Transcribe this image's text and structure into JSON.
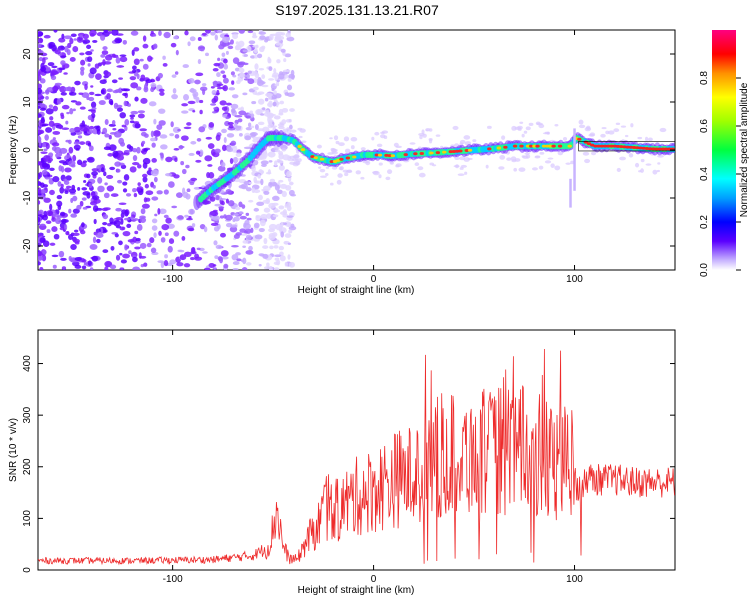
{
  "title": "S197.2025.131.13.21.R07",
  "colors": {
    "snr_line": "#ee2b2b",
    "ridge_low": "#6a00ff",
    "ridge_mid": "#00c8ff",
    "ridge_high": "#ff1010"
  },
  "chart_data": [
    {
      "type": "heatmap",
      "title": "S197.2025.131.13.21.R07",
      "xlabel": "Height of straight line (km)",
      "ylabel": "Frequency (Hz)",
      "xlim": [
        -167,
        150
      ],
      "ylim": [
        -25,
        25
      ],
      "x_ticks": [
        -100,
        0,
        100
      ],
      "y_ticks": [
        -20,
        -10,
        0,
        10,
        20
      ],
      "ridge": {
        "x": [
          -88,
          -80,
          -70,
          -62,
          -56,
          -52,
          -45,
          -40,
          -35,
          -30,
          -25,
          -20,
          -15,
          -10,
          -5,
          0,
          10,
          20,
          30,
          40,
          50,
          60,
          70,
          80,
          90,
          98,
          101,
          110,
          120,
          130,
          140,
          150
        ],
        "y": [
          -11,
          -8,
          -5,
          -2,
          1,
          2.5,
          2.5,
          2,
          0,
          -1.5,
          -2,
          -2.5,
          -1.8,
          -1.5,
          -1,
          -1,
          -1.2,
          -0.8,
          -0.6,
          -0.3,
          0,
          0.3,
          0.8,
          0.8,
          0.8,
          0.8,
          2.5,
          0.8,
          0.8,
          0.5,
          0.2,
          0.2
        ]
      },
      "colorbar": {
        "label": "Normalized spectral amplitude",
        "range": [
          0,
          1
        ],
        "ticks": [
          0.0,
          0.2,
          0.4,
          0.6,
          0.8
        ]
      }
    },
    {
      "type": "line",
      "xlabel": "Height of straight line (km)",
      "ylabel": "SNR (10 * v/v)",
      "xlim": [
        -167,
        150
      ],
      "ylim": [
        0,
        465
      ],
      "x_ticks": [
        -100,
        0,
        100
      ],
      "y_ticks": [
        0,
        100,
        200,
        300,
        400
      ],
      "envelope": {
        "x": [
          -167,
          -120,
          -80,
          -60,
          -52,
          -48,
          -45,
          -42,
          -38,
          -33,
          -28,
          -25,
          -20,
          -10,
          0,
          10,
          20,
          30,
          40,
          50,
          60,
          70,
          80,
          90,
          98,
          102,
          106,
          110,
          120,
          130,
          140,
          150
        ],
        "y": [
          18,
          18,
          20,
          28,
          45,
          120,
          45,
          22,
          20,
          60,
          80,
          120,
          110,
          140,
          155,
          175,
          185,
          215,
          225,
          225,
          230,
          235,
          225,
          205,
          215,
          150,
          180,
          175,
          175,
          170,
          170,
          170
        ]
      }
    }
  ]
}
